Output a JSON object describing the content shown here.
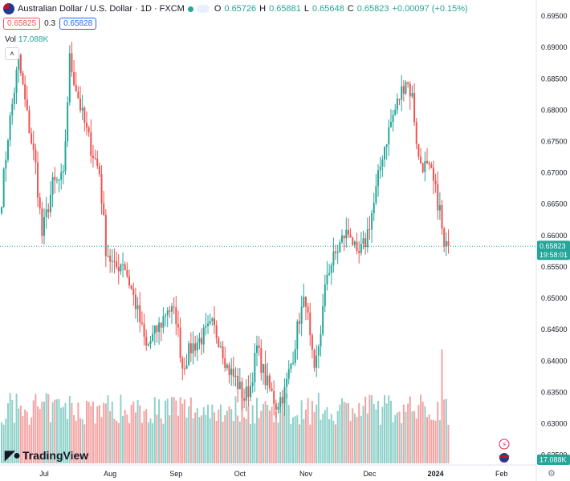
{
  "header": {
    "title": "Australian Dollar / U.S. Dollar · 1D · FXCM",
    "open_label": "O",
    "open": "0.65726",
    "high_label": "H",
    "high": "0.65881",
    "low_label": "L",
    "low": "0.65648",
    "close_label": "C",
    "close": "0.65823",
    "change": "+0.00097 (+0.15%)",
    "sell_price": "0.65825",
    "spread": "0.3",
    "buy_price": "0.65828"
  },
  "volume": {
    "label": "Vol",
    "value": "17.088K"
  },
  "badges": {
    "last_price": "0.65823",
    "countdown": "19:58:01",
    "volume": "17.088K"
  },
  "logo": {
    "text": "TradingView"
  },
  "colors": {
    "up": "#26a69a",
    "down": "#ef5350",
    "up_vol": "#8fd1ca",
    "down_vol": "#f4a3a3"
  },
  "chart_data": {
    "type": "candlestick",
    "price_axis_ticks": [
      "0.69500",
      "0.69000",
      "0.68500",
      "0.68000",
      "0.67500",
      "0.67000",
      "0.66500",
      "0.66000",
      "0.65500",
      "0.65000",
      "0.64500",
      "0.64000",
      "0.63500",
      "0.63000",
      "0.62500"
    ],
    "ylim": [
      0.6208,
      0.6975
    ],
    "time_axis_ticks": [
      {
        "label": "Jul",
        "day": 20
      },
      {
        "label": "Aug",
        "day": 51
      },
      {
        "label": "Sep",
        "day": 82
      },
      {
        "label": "Oct",
        "day": 112
      },
      {
        "label": "Nov",
        "day": 143
      },
      {
        "label": "Dec",
        "day": 173
      },
      {
        "label": "2024",
        "day": 204
      },
      {
        "label": "Feb",
        "day": 235
      }
    ],
    "anchors": [
      {
        "day": 0,
        "close": 0.666
      },
      {
        "day": 3,
        "close": 0.676
      },
      {
        "day": 8,
        "close": 0.688
      },
      {
        "day": 12,
        "close": 0.679
      },
      {
        "day": 16,
        "close": 0.671
      },
      {
        "day": 19,
        "close": 0.66
      },
      {
        "day": 24,
        "close": 0.668
      },
      {
        "day": 29,
        "close": 0.669
      },
      {
        "day": 32,
        "close": 0.688
      },
      {
        "day": 38,
        "close": 0.679
      },
      {
        "day": 42,
        "close": 0.674
      },
      {
        "day": 46,
        "close": 0.67
      },
      {
        "day": 49,
        "close": 0.658
      },
      {
        "day": 53,
        "close": 0.6545
      },
      {
        "day": 57,
        "close": 0.656
      },
      {
        "day": 63,
        "close": 0.649
      },
      {
        "day": 68,
        "close": 0.642
      },
      {
        "day": 75,
        "close": 0.646
      },
      {
        "day": 78,
        "close": 0.6485
      },
      {
        "day": 82,
        "close": 0.647
      },
      {
        "day": 85,
        "close": 0.639
      },
      {
        "day": 89,
        "close": 0.642
      },
      {
        "day": 95,
        "close": 0.644
      },
      {
        "day": 99,
        "close": 0.6455
      },
      {
        "day": 103,
        "close": 0.643
      },
      {
        "day": 106,
        "close": 0.639
      },
      {
        "day": 110,
        "close": 0.637
      },
      {
        "day": 114,
        "close": 0.634
      },
      {
        "day": 117,
        "close": 0.636
      },
      {
        "day": 120,
        "close": 0.642
      },
      {
        "day": 124,
        "close": 0.637
      },
      {
        "day": 129,
        "close": 0.633
      },
      {
        "day": 133,
        "close": 0.635
      },
      {
        "day": 137,
        "close": 0.641
      },
      {
        "day": 140,
        "close": 0.647
      },
      {
        "day": 143,
        "close": 0.65
      },
      {
        "day": 145,
        "close": 0.643
      },
      {
        "day": 147,
        "close": 0.6375
      },
      {
        "day": 150,
        "close": 0.645
      },
      {
        "day": 153,
        "close": 0.654
      },
      {
        "day": 157,
        "close": 0.657
      },
      {
        "day": 161,
        "close": 0.66
      },
      {
        "day": 164,
        "close": 0.6605
      },
      {
        "day": 167,
        "close": 0.656
      },
      {
        "day": 171,
        "close": 0.659
      },
      {
        "day": 175,
        "close": 0.665
      },
      {
        "day": 179,
        "close": 0.673
      },
      {
        "day": 183,
        "close": 0.678
      },
      {
        "day": 186,
        "close": 0.681
      },
      {
        "day": 190,
        "close": 0.685
      },
      {
        "day": 193,
        "close": 0.682
      },
      {
        "day": 196,
        "close": 0.672
      },
      {
        "day": 199,
        "close": 0.671
      },
      {
        "day": 202,
        "close": 0.6695
      },
      {
        "day": 206,
        "close": 0.664
      },
      {
        "day": 208,
        "close": 0.6575
      },
      {
        "day": 210,
        "close": 0.6582
      }
    ]
  }
}
